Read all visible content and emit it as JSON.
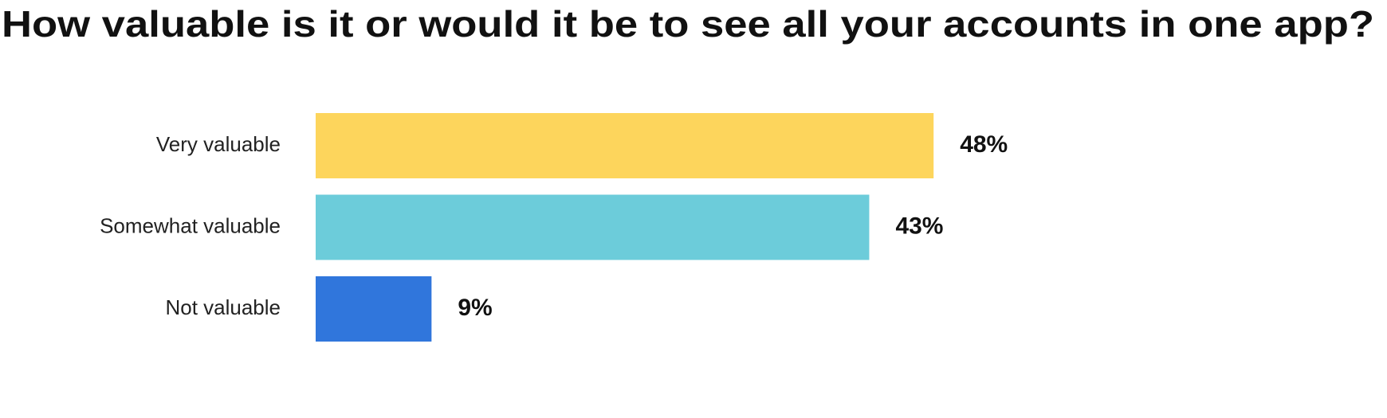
{
  "chart_data": {
    "type": "bar",
    "orientation": "horizontal",
    "title": "How valuable is it or would it be to see all your accounts in one app?",
    "categories": [
      "Very valuable",
      "Somewhat valuable",
      "Not valuable"
    ],
    "values": [
      48,
      43,
      9
    ],
    "value_labels": [
      "48%",
      "43%",
      "9%"
    ],
    "colors": [
      "#fdd55c",
      "#6cccda",
      "#3076dc"
    ]
  }
}
